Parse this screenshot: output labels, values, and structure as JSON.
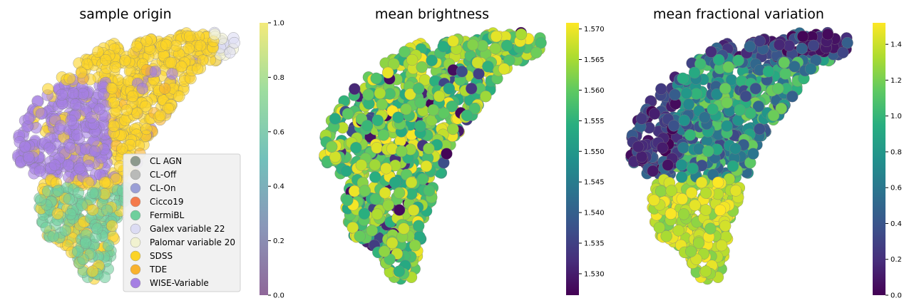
{
  "chart_data": [
    {
      "type": "scatter",
      "title": "sample origin",
      "color_by": "category",
      "colormap": "viridis",
      "alpha": 0.6,
      "colorbar": {
        "ticks": [
          "0.0",
          "0.2",
          "0.4",
          "0.6",
          "0.8",
          "1.0"
        ],
        "range": [
          0.0,
          1.0
        ]
      },
      "legend": {
        "placement": "lower-right",
        "entries": [
          {
            "label": "CL AGN",
            "color": "#8e9a8c"
          },
          {
            "label": "CL-Off",
            "color": "#b9bab8"
          },
          {
            "label": "CL-On",
            "color": "#9a9fd6"
          },
          {
            "label": "Cicco19",
            "color": "#f47a4c"
          },
          {
            "label": "FermiBL",
            "color": "#6fcf9d"
          },
          {
            "label": "Galex variable 22",
            "color": "#dcdcf3"
          },
          {
            "label": "Palomar variable 20",
            "color": "#f1f2d0"
          },
          {
            "label": "SDSS",
            "color": "#fbd326"
          },
          {
            "label": "TDE",
            "color": "#f9b22d"
          },
          {
            "label": "WISE-Variable",
            "color": "#a57fe3"
          }
        ]
      }
    },
    {
      "type": "scatter",
      "title": "mean brightness",
      "colormap": "viridis",
      "colorbar": {
        "ticks": [
          "1.530",
          "1.535",
          "1.540",
          "1.545",
          "1.550",
          "1.555",
          "1.560",
          "1.565",
          "1.570"
        ],
        "range": [
          1.5265,
          1.571
        ]
      }
    },
    {
      "type": "scatter",
      "title": "mean fractional variation",
      "colormap": "viridis",
      "colorbar": {
        "ticks": [
          "0.0",
          "0.2",
          "0.4",
          "0.6",
          "0.8",
          "1.0",
          "1.2",
          "1.4"
        ],
        "range": [
          0.0,
          1.52
        ]
      }
    }
  ]
}
